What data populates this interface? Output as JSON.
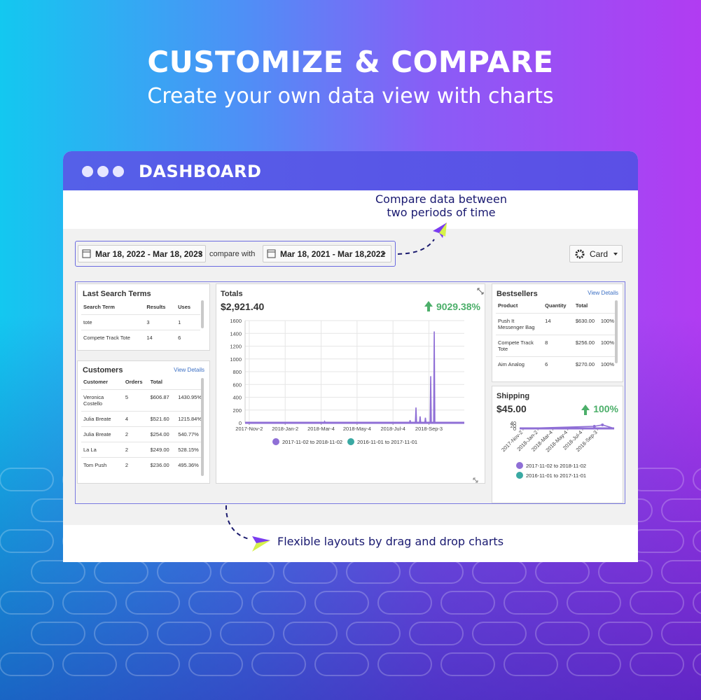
{
  "header": {
    "title": "CUSTOMIZE & COMPARE",
    "subtitle": "Create your own data view with charts"
  },
  "window": {
    "title": "DASHBOARD"
  },
  "annotations": {
    "compare": [
      "Compare data between",
      "two periods of time"
    ],
    "layout": "Flexible layouts by drag and drop charts"
  },
  "toolbar": {
    "date_range": "Mar 18, 2022 - Mar 18, 2023",
    "compare_label": "compare with",
    "compare_range": "Mar 18, 2021 - Mar 18,2022",
    "view": "Card"
  },
  "last_search_terms": {
    "title": "Last Search Terms",
    "columns": [
      "Search Term",
      "Results",
      "Uses"
    ],
    "rows": [
      [
        "tote",
        "3",
        "1"
      ],
      [
        "Compete Track Tote",
        "14",
        "6"
      ]
    ]
  },
  "customers": {
    "title": "Customers",
    "link": "View Details",
    "columns": [
      "Customer",
      "Orders",
      "Total"
    ],
    "rows": [
      [
        "Veronica Costello",
        "5",
        "$606.87",
        "1430.95%"
      ],
      [
        "Julia Breate",
        "4",
        "$521.60",
        "1215.84%"
      ],
      [
        "Julia Breate",
        "2",
        "$254.00",
        "540.77%"
      ],
      [
        "La La",
        "2",
        "$249.00",
        "528.15%"
      ],
      [
        "Tom Push",
        "2",
        "$236.00",
        "495.36%"
      ]
    ]
  },
  "bestsellers": {
    "title": "Bestsellers",
    "link": "View Details",
    "columns": [
      "Product",
      "Quantity",
      "Total"
    ],
    "rows": [
      [
        "Push It Messenger Bag",
        "14",
        "$630.00",
        "100%"
      ],
      [
        "Compete Track Tote",
        "8",
        "$256.00",
        "100%"
      ],
      [
        "Aim Analog",
        "6",
        "$270.00",
        "100%"
      ]
    ]
  },
  "totals": {
    "title": "Totals",
    "value": "$2,921.40",
    "change": "9029.38%",
    "chart": {
      "type": "line",
      "grid": true,
      "xlim": [
        "2017-10-26",
        "2018-11-02"
      ],
      "ylim": [
        0,
        1600
      ],
      "yticks": [
        0,
        200,
        400,
        600,
        800,
        1000,
        1200,
        1400,
        1600
      ],
      "xticks": [
        {
          "value": "2017-11-02",
          "label": "2017-Nov-2"
        },
        {
          "value": "2018-01-02",
          "label": "2018-Jan-2"
        },
        {
          "value": "2018-03-04",
          "label": "2018-Mar-4"
        },
        {
          "value": "2018-05-04",
          "label": "2018-May-4"
        },
        {
          "value": "2018-07-04",
          "label": "2018-Jul-4"
        },
        {
          "value": "2018-09-03",
          "label": "2018-Sep-3"
        }
      ],
      "x": [
        "2017-11-02",
        "2018-03-09",
        "2018-03-10",
        "2018-03-11",
        "2018-08-01",
        "2018-08-02",
        "2018-08-03",
        "2018-08-11",
        "2018-08-12",
        "2018-08-13",
        "2018-08-18",
        "2018-08-19",
        "2018-08-20",
        "2018-08-27",
        "2018-08-28",
        "2018-08-29",
        "2018-09-05",
        "2018-09-06",
        "2018-09-07",
        "2018-09-11",
        "2018-09-12",
        "2018-09-13",
        "2018-11-02"
      ],
      "series": [
        {
          "name": "2017-11-02 to 2018-11-02",
          "color": "#8f6fd6",
          "values": [
            0,
            0,
            20,
            0,
            0,
            40,
            0,
            0,
            240,
            0,
            0,
            100,
            0,
            0,
            80,
            0,
            0,
            730,
            0,
            0,
            1430,
            0,
            0
          ]
        },
        {
          "name": "2016-11-01 to 2017-11-01",
          "color": "#3aa9a3",
          "values": [
            0,
            0,
            0,
            0,
            0,
            0,
            0,
            0,
            0,
            0,
            0,
            0,
            0,
            0,
            0,
            0,
            0,
            0,
            0,
            0,
            0,
            0,
            0
          ]
        }
      ]
    }
  },
  "shipping": {
    "title": "Shipping",
    "value": "$45.00",
    "change": "100%",
    "chart": {
      "type": "line",
      "grid": false,
      "xtick_rotation": -45,
      "xlim": [
        "2017-10-19",
        "2018-11-10"
      ],
      "ylim": [
        0,
        40
      ],
      "yticks": [
        0,
        20,
        40
      ],
      "xticks": [
        {
          "value": "2017-11-02",
          "label": "2017-Nov-2"
        },
        {
          "value": "2018-01-02",
          "label": "2018-Jan-2"
        },
        {
          "value": "2018-03-04",
          "label": "2018-Mar-4"
        },
        {
          "value": "2018-05-04",
          "label": "2018-May-4"
        },
        {
          "value": "2018-07-04",
          "label": "2018-Jul-4"
        },
        {
          "value": "2018-09-03",
          "label": "2018-Sep-3"
        }
      ],
      "x": [
        "2017-11-02",
        "2018-08-21",
        "2018-09-23",
        "2018-11-10"
      ],
      "series": [
        {
          "name": "2017-11-02 to 2018-11-02",
          "color": "#8f6fd6",
          "values": [
            0,
            15,
            25,
            0
          ]
        },
        {
          "name": "2016-11-01 to 2017-11-01",
          "color": "#3aa9a3",
          "values": [
            0,
            0,
            0,
            0
          ]
        }
      ]
    }
  }
}
